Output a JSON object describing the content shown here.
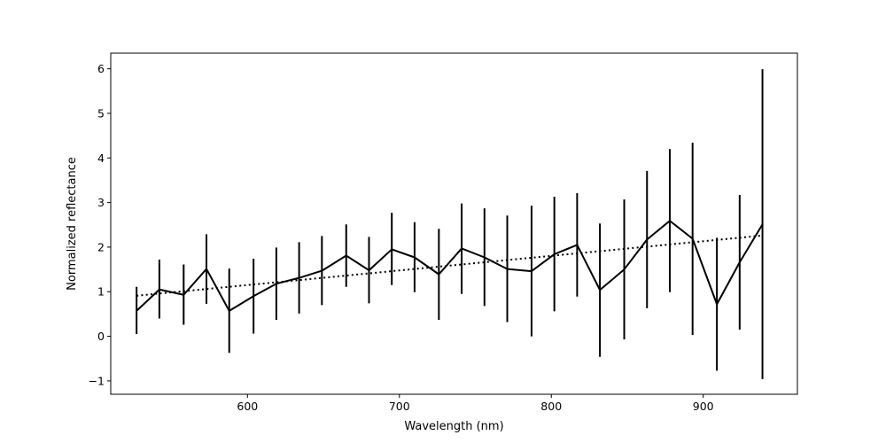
{
  "chart_data": {
    "type": "line",
    "title": "",
    "xlabel": "Wavelength (nm)",
    "ylabel": "Normalized reflectance",
    "xlim": [
      510,
      962
    ],
    "ylim": [
      -1.3,
      6.35
    ],
    "xticks": [
      600,
      700,
      800,
      900
    ],
    "xtick_labels": [
      "600",
      "700",
      "800",
      "900"
    ],
    "yticks": [
      -1,
      0,
      1,
      2,
      3,
      4,
      5,
      6
    ],
    "ytick_labels": [
      "−1",
      "0",
      "1",
      "2",
      "3",
      "4",
      "5",
      "6"
    ],
    "grid": false,
    "legend": "none",
    "series": [
      {
        "style": "solid",
        "color": "#000000",
        "x": [
          527,
          542,
          558,
          573,
          588,
          604,
          619,
          634,
          649,
          665,
          680,
          695,
          710,
          726,
          741,
          756,
          771,
          787,
          802,
          817,
          832,
          848,
          863,
          878,
          893,
          909,
          924,
          939
        ],
        "y": [
          0.57,
          1.05,
          0.93,
          1.51,
          0.57,
          0.9,
          1.18,
          1.31,
          1.47,
          1.81,
          1.48,
          1.95,
          1.77,
          1.39,
          1.97,
          1.77,
          1.51,
          1.46,
          1.84,
          2.05,
          1.04,
          1.5,
          2.17,
          2.59,
          2.19,
          0.72,
          1.66,
          2.51
        ],
        "yerr_low": [
          0.05,
          0.4,
          0.26,
          0.73,
          -0.37,
          0.06,
          0.37,
          0.51,
          0.7,
          1.11,
          0.74,
          1.15,
          0.99,
          0.37,
          0.95,
          0.68,
          0.32,
          0.0,
          0.56,
          0.89,
          -0.46,
          -0.07,
          0.63,
          0.99,
          0.03,
          -0.77,
          0.15,
          -0.96
        ],
        "yerr_high": [
          1.11,
          1.72,
          1.61,
          2.29,
          1.52,
          1.74,
          1.99,
          2.11,
          2.25,
          2.51,
          2.23,
          2.77,
          2.56,
          2.41,
          2.98,
          2.87,
          2.71,
          2.93,
          3.13,
          3.21,
          2.53,
          3.07,
          3.71,
          4.2,
          4.34,
          2.21,
          3.17,
          5.99
        ]
      },
      {
        "style": "dotted",
        "color": "#000000",
        "x": [
          527,
          939
        ],
        "y": [
          0.91,
          2.26
        ]
      }
    ]
  }
}
